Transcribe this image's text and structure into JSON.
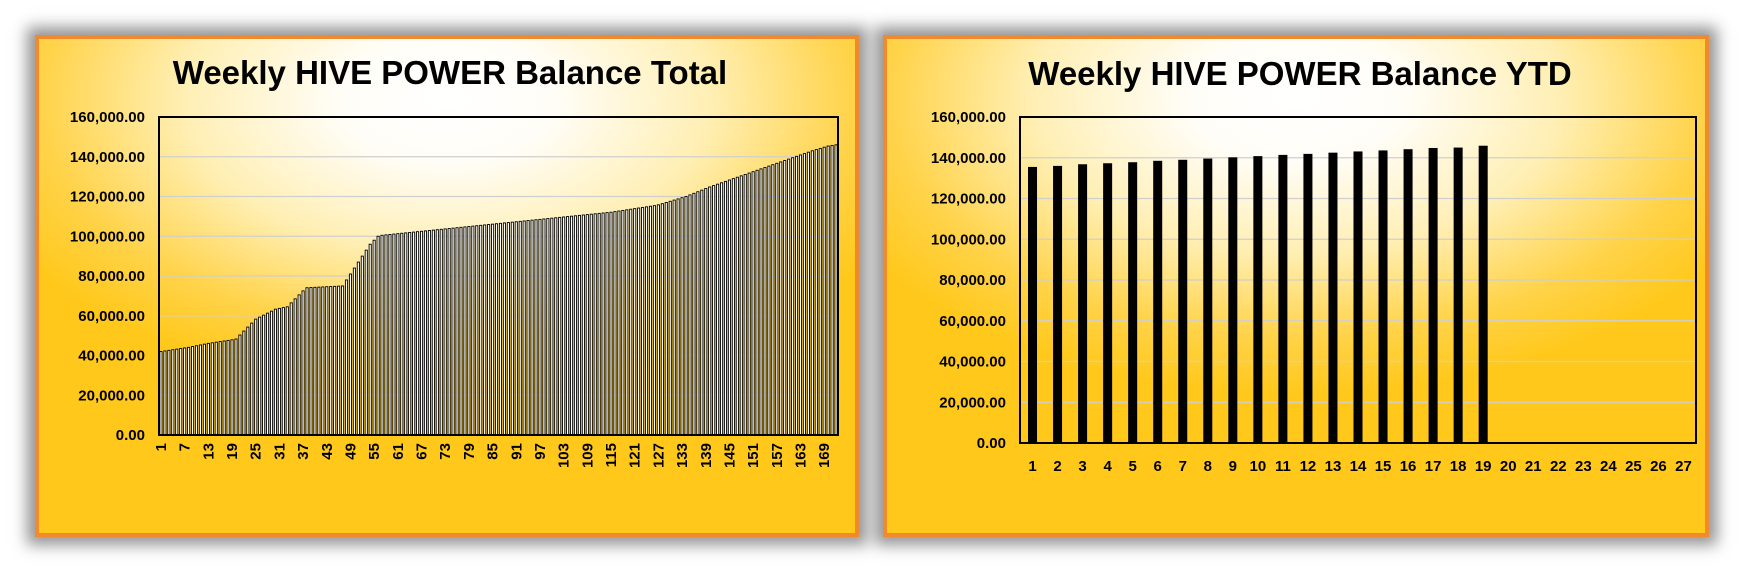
{
  "chart_data": [
    {
      "type": "bar",
      "title": "Weekly HIVE POWER Balance Total",
      "xlabel": "",
      "ylabel": "",
      "ylim": [
        0,
        160000
      ],
      "y_ticks": [
        "0.00",
        "20,000.00",
        "40,000.00",
        "60,000.00",
        "80,000.00",
        "100,000.00",
        "120,000.00",
        "140,000.00",
        "160,000.00"
      ],
      "x_tick_labels": [
        "1",
        "7",
        "13",
        "19",
        "25",
        "31",
        "37",
        "43",
        "49",
        "55",
        "61",
        "67",
        "73",
        "79",
        "85",
        "91",
        "97",
        "103",
        "109",
        "115",
        "121",
        "127",
        "133",
        "139",
        "145",
        "151",
        "157",
        "163",
        "169"
      ],
      "categories": [
        "1",
        "2",
        "3",
        "4",
        "5",
        "6",
        "7",
        "8",
        "9",
        "10",
        "11",
        "12",
        "13",
        "14",
        "15",
        "16",
        "17",
        "18",
        "19",
        "20",
        "21",
        "22",
        "23",
        "24",
        "25",
        "26",
        "27",
        "28",
        "29",
        "30",
        "31",
        "32",
        "33",
        "34",
        "35",
        "36",
        "37",
        "38",
        "39",
        "40",
        "41",
        "42",
        "43",
        "44",
        "45",
        "46",
        "47",
        "48",
        "49",
        "50",
        "51",
        "52",
        "53",
        "54",
        "55",
        "56",
        "57",
        "58",
        "59",
        "60",
        "61",
        "62",
        "63",
        "64",
        "65",
        "66",
        "67",
        "68",
        "69",
        "70",
        "71",
        "72",
        "73",
        "74",
        "75",
        "76",
        "77",
        "78",
        "79",
        "80",
        "81",
        "82",
        "83",
        "84",
        "85",
        "86",
        "87",
        "88",
        "89",
        "90",
        "91",
        "92",
        "93",
        "94",
        "95",
        "96",
        "97",
        "98",
        "99",
        "100",
        "101",
        "102",
        "103",
        "104",
        "105",
        "106",
        "107",
        "108",
        "109",
        "110",
        "111",
        "112",
        "113",
        "114",
        "115",
        "116",
        "117",
        "118",
        "119",
        "120",
        "121",
        "122",
        "123",
        "124",
        "125",
        "126",
        "127",
        "128",
        "129",
        "130",
        "131",
        "132",
        "133",
        "134",
        "135",
        "136",
        "137",
        "138",
        "139",
        "140",
        "141",
        "142",
        "143",
        "144",
        "145",
        "146",
        "147",
        "148",
        "149",
        "150",
        "151",
        "152",
        "153",
        "154",
        "155",
        "156",
        "157",
        "158",
        "159",
        "160",
        "161",
        "162",
        "163",
        "164",
        "165",
        "166",
        "167",
        "168",
        "169",
        "170",
        "171",
        "172"
      ],
      "values": [
        42000,
        42300,
        42600,
        42900,
        43200,
        43500,
        43800,
        44100,
        44500,
        44900,
        45300,
        45700,
        46100,
        46400,
        46700,
        47000,
        47300,
        47600,
        47900,
        48300,
        50300,
        52300,
        54300,
        56300,
        58300,
        59300,
        60300,
        61300,
        62300,
        63300,
        63700,
        64100,
        64500,
        66500,
        68500,
        70500,
        72500,
        74100,
        74200,
        74300,
        74400,
        74500,
        74600,
        74700,
        74800,
        74900,
        75000,
        78000,
        81000,
        84000,
        87000,
        90000,
        93000,
        96000,
        98000,
        100000,
        100500,
        100700,
        100900,
        101100,
        101300,
        101500,
        101700,
        101900,
        102100,
        102300,
        102500,
        102700,
        102900,
        103100,
        103300,
        103500,
        103700,
        103900,
        104100,
        104300,
        104500,
        104700,
        104900,
        105100,
        105300,
        105500,
        105700,
        105900,
        106100,
        106300,
        106500,
        106700,
        106900,
        107100,
        107300,
        107500,
        107700,
        107900,
        108100,
        108300,
        108500,
        108700,
        108900,
        109100,
        109300,
        109500,
        109700,
        109900,
        110100,
        110300,
        110500,
        110700,
        110900,
        111100,
        111300,
        111500,
        111700,
        111900,
        112100,
        112400,
        112700,
        113000,
        113300,
        113600,
        113900,
        114200,
        114500,
        114800,
        115100,
        115400,
        115800,
        116400,
        117000,
        117600,
        118200,
        118800,
        119400,
        120000,
        120800,
        121600,
        122400,
        123200,
        124000,
        124800,
        125500,
        126200,
        126900,
        127600,
        128300,
        129000,
        129700,
        130400,
        131100,
        131800,
        132500,
        133200,
        133900,
        134600,
        135300,
        136000,
        136700,
        137400,
        138100,
        138800,
        139500,
        140200,
        140900,
        141600,
        142300,
        143000,
        143600,
        144200,
        144800,
        145400,
        145700,
        146000
      ]
    },
    {
      "type": "bar",
      "title": "Weekly HIVE POWER Balance YTD",
      "xlabel": "",
      "ylabel": "",
      "ylim": [
        0,
        160000
      ],
      "y_ticks": [
        "0.00",
        "20,000.00",
        "40,000.00",
        "60,000.00",
        "80,000.00",
        "100,000.00",
        "120,000.00",
        "140,000.00",
        "160,000.00"
      ],
      "categories": [
        "1",
        "2",
        "3",
        "4",
        "5",
        "6",
        "7",
        "8",
        "9",
        "10",
        "11",
        "12",
        "13",
        "14",
        "15",
        "16",
        "17",
        "18",
        "19",
        "20",
        "21",
        "22",
        "23",
        "24",
        "25",
        "26",
        "27"
      ],
      "values": [
        135500,
        136000,
        136800,
        137300,
        137800,
        138500,
        139000,
        139600,
        140200,
        140800,
        141400,
        141900,
        142500,
        143100,
        143600,
        144200,
        144800,
        145000,
        145900,
        null,
        null,
        null,
        null,
        null,
        null,
        null,
        null
      ]
    }
  ]
}
